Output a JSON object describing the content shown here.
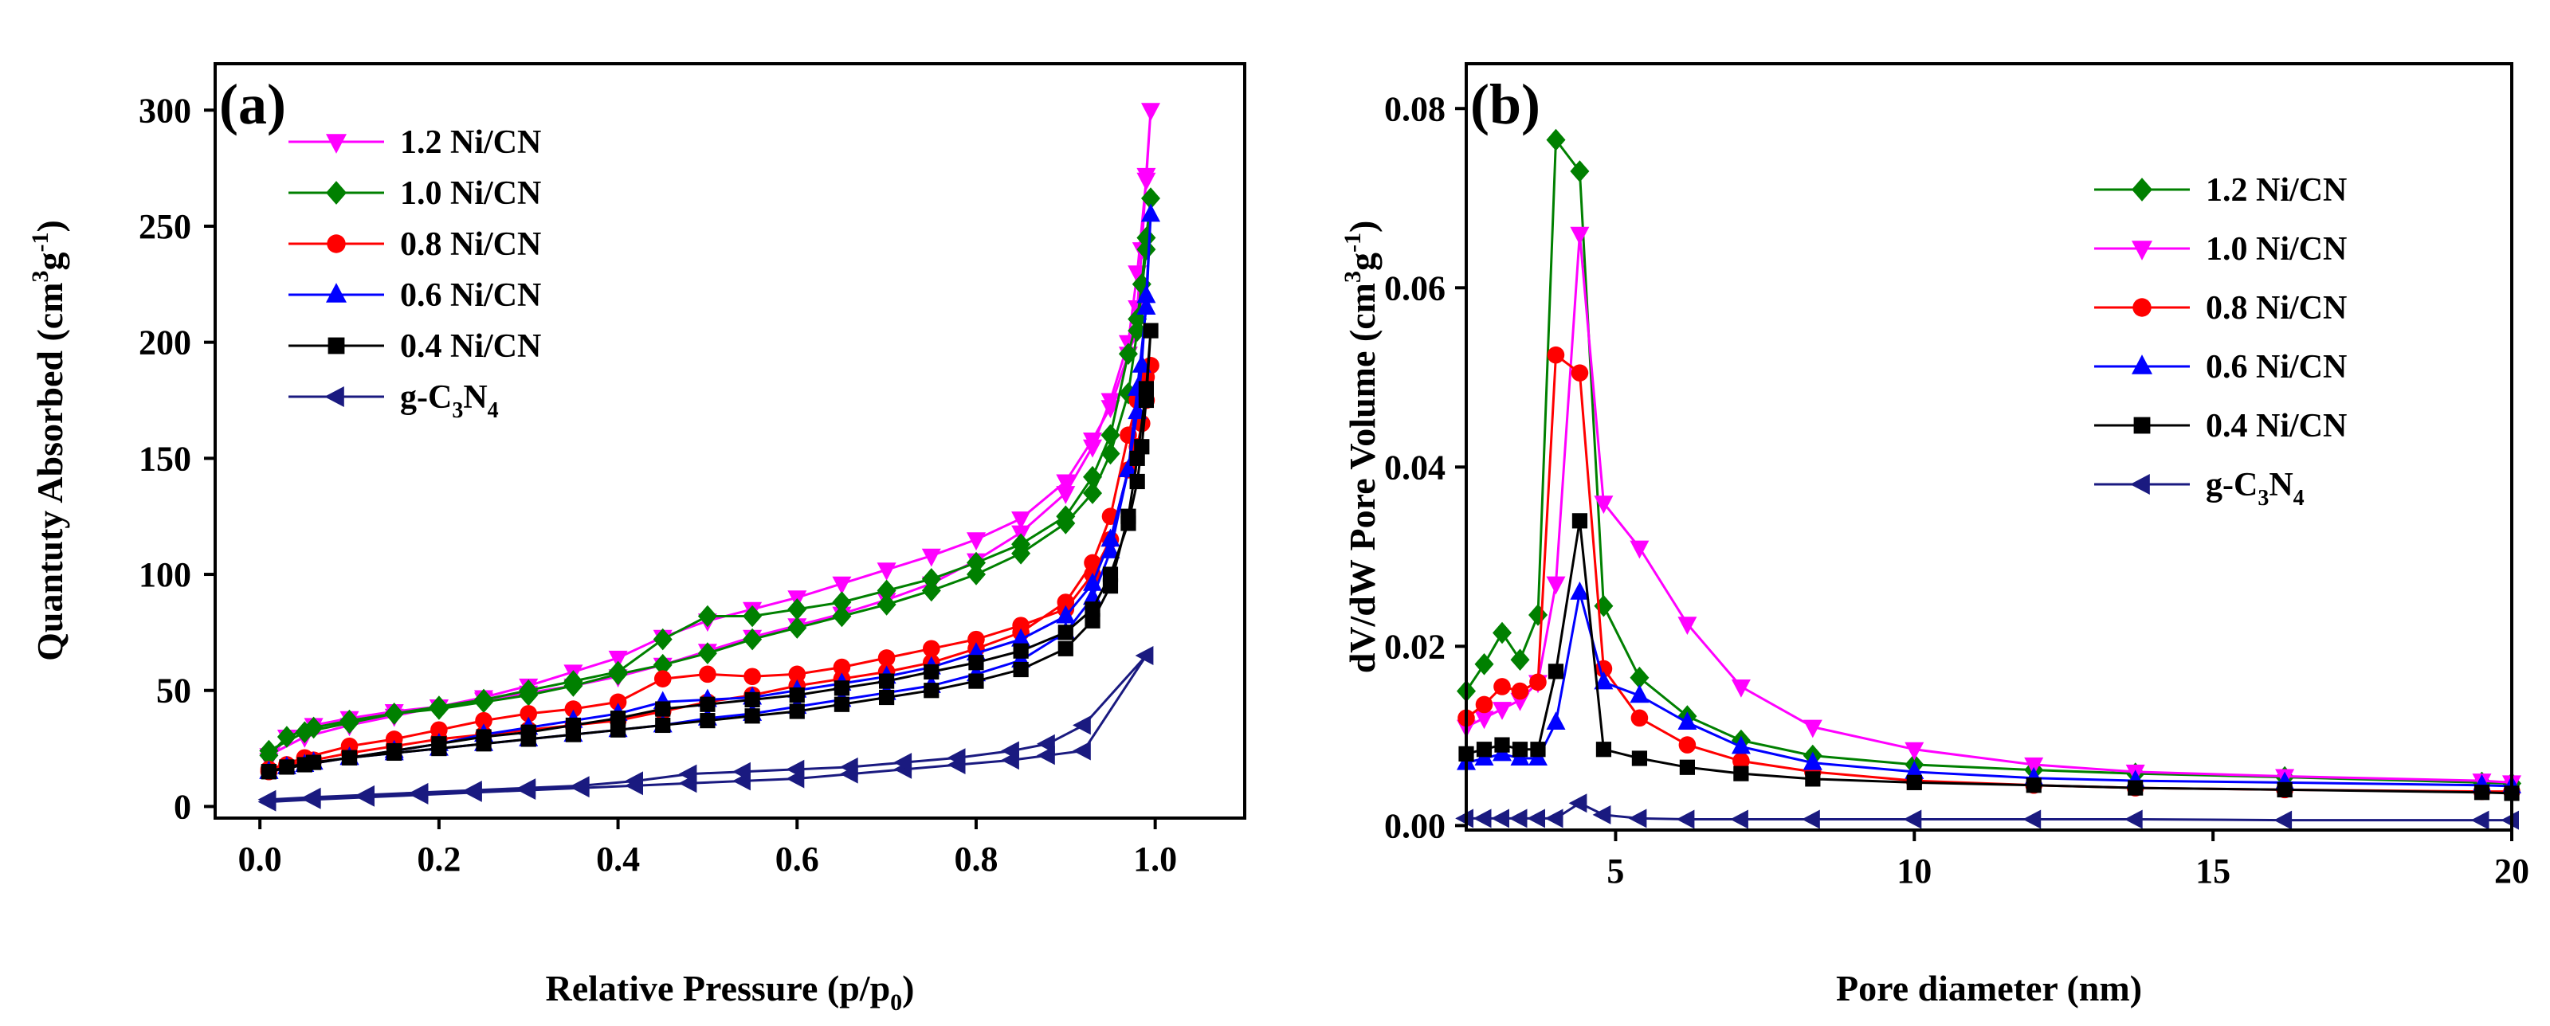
{
  "chart_data": [
    {
      "type": "line",
      "panel_label": "(a)",
      "xlabel_text": "Relative Pressure (p/p",
      "xlabel_sub": "0",
      "xlabel_end": ")",
      "ylabel_text": "Quantuty Absorbed (cm",
      "ylabel_sup1": "3",
      "ylabel_mid": "g",
      "ylabel_sup2": "-1",
      "ylabel_end": ")",
      "xlim": [
        -0.05,
        1.1
      ],
      "ylim": [
        -5,
        320
      ],
      "xticks": [
        0.0,
        0.2,
        0.4,
        0.6,
        0.8,
        1.0
      ],
      "xtick_labels": [
        "0.0",
        "0.2",
        "0.4",
        "0.6",
        "0.8",
        "1.0"
      ],
      "yticks": [
        0,
        50,
        100,
        150,
        200,
        250,
        300
      ],
      "ytick_labels": [
        "0",
        "50",
        "100",
        "150",
        "200",
        "250",
        "300"
      ],
      "legend_position": "top-left",
      "series": [
        {
          "name": "1.2 Ni/CN",
          "color": "#ff00ff",
          "marker": "triangle-down",
          "x": [
            0.01,
            0.03,
            0.06,
            0.1,
            0.15,
            0.2,
            0.25,
            0.3,
            0.35,
            0.4,
            0.45,
            0.5,
            0.55,
            0.6,
            0.65,
            0.7,
            0.75,
            0.8,
            0.85,
            0.9,
            0.93,
            0.95,
            0.97,
            0.98,
            0.99,
            0.995,
            0.99,
            0.985,
            0.98,
            0.97,
            0.95,
            0.93,
            0.9,
            0.85,
            0.8,
            0.75,
            0.7,
            0.65,
            0.6,
            0.55,
            0.5,
            0.45,
            0.4,
            0.35,
            0.3,
            0.25,
            0.2,
            0.15,
            0.1,
            0.05,
            0.01
          ],
          "y": [
            20,
            30,
            35,
            38,
            41,
            43,
            46,
            49,
            52,
            56,
            61,
            67,
            73,
            78,
            83,
            89,
            96,
            106,
            118,
            135,
            155,
            175,
            200,
            230,
            270,
            300,
            272,
            240,
            215,
            195,
            172,
            158,
            140,
            124,
            115,
            108,
            102,
            96,
            90,
            85,
            80,
            73,
            64,
            58,
            52,
            47,
            43,
            39,
            35,
            30,
            22
          ]
        },
        {
          "name": "1.0 Ni/CN",
          "color": "#008000",
          "marker": "diamond",
          "x": [
            0.01,
            0.03,
            0.06,
            0.1,
            0.15,
            0.2,
            0.25,
            0.3,
            0.35,
            0.4,
            0.45,
            0.5,
            0.55,
            0.6,
            0.65,
            0.7,
            0.75,
            0.8,
            0.85,
            0.9,
            0.93,
            0.95,
            0.97,
            0.98,
            0.99,
            0.995,
            0.99,
            0.985,
            0.98,
            0.97,
            0.95,
            0.93,
            0.9,
            0.85,
            0.8,
            0.75,
            0.7,
            0.65,
            0.6,
            0.55,
            0.5,
            0.45,
            0.4,
            0.35,
            0.3,
            0.25,
            0.2,
            0.15,
            0.1,
            0.05,
            0.01
          ],
          "y": [
            22,
            30,
            34,
            37,
            40,
            42,
            45,
            48,
            52,
            57,
            61,
            66,
            72,
            77,
            82,
            87,
            93,
            100,
            109,
            122,
            135,
            152,
            178,
            205,
            240,
            262,
            245,
            225,
            210,
            195,
            160,
            142,
            125,
            113,
            105,
            98,
            93,
            88,
            85,
            82,
            82,
            72,
            58,
            54,
            50,
            46,
            43,
            40,
            36,
            32,
            24
          ]
        },
        {
          "name": "0.8 Ni/CN",
          "color": "#ff0000",
          "marker": "circle",
          "x": [
            0.01,
            0.03,
            0.06,
            0.1,
            0.15,
            0.2,
            0.25,
            0.3,
            0.35,
            0.4,
            0.45,
            0.5,
            0.55,
            0.6,
            0.65,
            0.7,
            0.75,
            0.8,
            0.85,
            0.9,
            0.93,
            0.95,
            0.97,
            0.98,
            0.99,
            0.995,
            0.99,
            0.985,
            0.98,
            0.97,
            0.95,
            0.93,
            0.9,
            0.85,
            0.8,
            0.75,
            0.7,
            0.65,
            0.6,
            0.55,
            0.5,
            0.45,
            0.4,
            0.35,
            0.3,
            0.25,
            0.2,
            0.15,
            0.1,
            0.05,
            0.01
          ],
          "y": [
            15,
            18,
            20,
            23,
            26,
            29,
            31,
            33,
            35,
            37,
            41,
            45,
            48,
            52,
            55,
            58,
            62,
            68,
            75,
            88,
            105,
            125,
            160,
            175,
            185,
            190,
            175,
            165,
            155,
            145,
            115,
            100,
            85,
            78,
            72,
            68,
            64,
            60,
            57,
            56,
            57,
            55,
            45,
            42,
            40,
            37,
            33,
            29,
            26,
            21,
            16
          ]
        },
        {
          "name": "0.6 Ni/CN",
          "color": "#0000ff",
          "marker": "triangle-up",
          "x": [
            0.01,
            0.03,
            0.06,
            0.1,
            0.15,
            0.2,
            0.25,
            0.3,
            0.35,
            0.4,
            0.45,
            0.5,
            0.55,
            0.6,
            0.65,
            0.7,
            0.75,
            0.8,
            0.85,
            0.9,
            0.93,
            0.95,
            0.97,
            0.98,
            0.99,
            0.995,
            0.99,
            0.985,
            0.98,
            0.97,
            0.95,
            0.93,
            0.9,
            0.85,
            0.8,
            0.75,
            0.7,
            0.65,
            0.6,
            0.55,
            0.5,
            0.45,
            0.4,
            0.35,
            0.3,
            0.25,
            0.2,
            0.15,
            0.1,
            0.05,
            0.01
          ],
          "y": [
            15,
            17,
            19,
            21,
            23,
            25,
            27,
            29,
            31,
            33,
            35,
            38,
            40,
            43,
            46,
            49,
            52,
            57,
            63,
            75,
            90,
            110,
            145,
            180,
            215,
            255,
            220,
            190,
            170,
            145,
            115,
            96,
            82,
            72,
            66,
            60,
            56,
            53,
            50,
            47,
            46,
            45,
            40,
            37,
            34,
            31,
            27,
            24,
            21,
            18,
            15
          ]
        },
        {
          "name": "0.4 Ni/CN",
          "color": "#000000",
          "marker": "square",
          "x": [
            0.01,
            0.03,
            0.06,
            0.1,
            0.15,
            0.2,
            0.25,
            0.3,
            0.35,
            0.4,
            0.45,
            0.5,
            0.55,
            0.6,
            0.65,
            0.7,
            0.75,
            0.8,
            0.85,
            0.9,
            0.93,
            0.95,
            0.97,
            0.98,
            0.99,
            0.995,
            0.99,
            0.985,
            0.98,
            0.97,
            0.95,
            0.93,
            0.9,
            0.85,
            0.8,
            0.75,
            0.7,
            0.65,
            0.6,
            0.55,
            0.5,
            0.45,
            0.4,
            0.35,
            0.3,
            0.25,
            0.2,
            0.15,
            0.1,
            0.05,
            0.01
          ],
          "y": [
            15,
            17,
            19,
            21,
            23,
            25,
            27,
            29,
            31,
            33,
            35,
            37,
            39,
            41,
            44,
            47,
            50,
            54,
            59,
            68,
            80,
            95,
            125,
            150,
            180,
            205,
            175,
            155,
            140,
            122,
            100,
            85,
            75,
            67,
            62,
            58,
            54,
            51,
            48,
            46,
            44,
            42,
            38,
            35,
            32,
            30,
            27,
            24,
            21,
            18,
            15
          ]
        },
        {
          "name": "g-C3N4",
          "color": "#1a1a80",
          "marker": "triangle-left",
          "x": [
            0.01,
            0.06,
            0.12,
            0.18,
            0.24,
            0.3,
            0.36,
            0.42,
            0.48,
            0.54,
            0.6,
            0.66,
            0.72,
            0.78,
            0.84,
            0.88,
            0.92,
            0.99,
            0.92,
            0.88,
            0.84,
            0.78,
            0.72,
            0.66,
            0.6,
            0.54,
            0.48,
            0.42,
            0.36,
            0.3,
            0.24,
            0.18,
            0.12,
            0.06,
            0.01
          ],
          "y": [
            2,
            3,
            4,
            5,
            6,
            7,
            8,
            9,
            10,
            11,
            12,
            14,
            16,
            18,
            20,
            22,
            24,
            65,
            35,
            27,
            24,
            21,
            19,
            17,
            16,
            15,
            14,
            11,
            9,
            8,
            7,
            6,
            5,
            4,
            3
          ]
        }
      ]
    },
    {
      "type": "line",
      "panel_label": "(b)",
      "xlabel": "Pore diameter (nm)",
      "ylabel_text": "dV/dW Pore Volume (cm",
      "ylabel_sup1": "3",
      "ylabel_mid": "g",
      "ylabel_sup2": "-1",
      "ylabel_end": ")",
      "xlim": [
        2.5,
        20
      ],
      "ylim": [
        -0.0005,
        0.085
      ],
      "xticks": [
        5,
        10,
        15,
        20
      ],
      "xtick_labels": [
        "5",
        "10",
        "15",
        "20"
      ],
      "yticks": [
        0.0,
        0.02,
        0.04,
        0.06,
        0.08
      ],
      "ytick_labels": [
        "0.00",
        "0.02",
        "0.04",
        "0.06",
        "0.08"
      ],
      "legend_position": "top-right",
      "series": [
        {
          "name": "1.2 Ni/CN",
          "color": "#008000",
          "marker": "diamond",
          "x": [
            2.5,
            2.8,
            3.1,
            3.4,
            3.7,
            4.0,
            4.4,
            4.8,
            5.4,
            6.2,
            7.1,
            8.3,
            10.0,
            12.0,
            13.7,
            16.2,
            19.5,
            20.0
          ],
          "y": [
            0.015,
            0.018,
            0.0215,
            0.0185,
            0.0235,
            0.0765,
            0.073,
            0.0245,
            0.0165,
            0.0122,
            0.0095,
            0.0078,
            0.0068,
            0.0062,
            0.0058,
            0.0054,
            0.0048,
            0.0047
          ]
        },
        {
          "name": "1.0 Ni/CN",
          "color": "#ff00ff",
          "marker": "triangle-down",
          "x": [
            2.5,
            2.8,
            3.1,
            3.4,
            3.7,
            4.0,
            4.4,
            4.8,
            5.4,
            6.2,
            7.1,
            8.3,
            10.0,
            12.0,
            13.7,
            16.2,
            19.5,
            20.0
          ],
          "y": [
            0.011,
            0.012,
            0.013,
            0.014,
            0.016,
            0.027,
            0.066,
            0.036,
            0.031,
            0.0225,
            0.0155,
            0.011,
            0.0085,
            0.0068,
            0.006,
            0.0055,
            0.005,
            0.0048
          ]
        },
        {
          "name": "0.8 Ni/CN",
          "color": "#ff0000",
          "marker": "circle",
          "x": [
            2.5,
            2.8,
            3.1,
            3.4,
            3.7,
            4.0,
            4.4,
            4.8,
            5.4,
            6.2,
            7.1,
            8.3,
            10.0,
            12.0,
            13.7,
            16.2,
            19.5,
            20.0
          ],
          "y": [
            0.012,
            0.0135,
            0.0155,
            0.015,
            0.016,
            0.0525,
            0.0505,
            0.0175,
            0.012,
            0.009,
            0.0072,
            0.006,
            0.005,
            0.0045,
            0.0042,
            0.004,
            0.0038,
            0.0038
          ]
        },
        {
          "name": "0.6 Ni/CN",
          "color": "#0000ff",
          "marker": "triangle-up",
          "x": [
            2.5,
            2.8,
            3.1,
            3.4,
            3.7,
            4.0,
            4.4,
            4.8,
            5.4,
            6.2,
            7.1,
            8.3,
            10.0,
            12.0,
            13.7,
            16.2,
            19.5,
            20.0
          ],
          "y": [
            0.007,
            0.0075,
            0.008,
            0.0075,
            0.0075,
            0.0115,
            0.026,
            0.016,
            0.0145,
            0.0115,
            0.0088,
            0.007,
            0.006,
            0.0053,
            0.005,
            0.0048,
            0.0045,
            0.0044
          ]
        },
        {
          "name": "0.4 Ni/CN",
          "color": "#000000",
          "marker": "square",
          "x": [
            2.5,
            2.8,
            3.1,
            3.4,
            3.7,
            4.0,
            4.4,
            4.8,
            5.4,
            6.2,
            7.1,
            8.3,
            10.0,
            12.0,
            13.7,
            16.2,
            19.5,
            20.0
          ],
          "y": [
            0.008,
            0.0085,
            0.009,
            0.0085,
            0.0085,
            0.0172,
            0.034,
            0.0085,
            0.0075,
            0.0065,
            0.0058,
            0.0052,
            0.0048,
            0.0045,
            0.0042,
            0.004,
            0.0037,
            0.0036
          ]
        },
        {
          "name": "g-C3N4",
          "color": "#1a1a80",
          "marker": "triangle-left",
          "x": [
            2.5,
            2.8,
            3.1,
            3.4,
            3.7,
            4.0,
            4.4,
            4.8,
            5.4,
            6.2,
            7.1,
            8.3,
            10.0,
            12.0,
            13.7,
            16.2,
            19.5,
            20.0
          ],
          "y": [
            0.0008,
            0.0008,
            0.0008,
            0.0008,
            0.0008,
            0.0008,
            0.0025,
            0.0012,
            0.0008,
            0.0007,
            0.0007,
            0.0007,
            0.0007,
            0.0007,
            0.0007,
            0.0006,
            0.0006,
            0.0006
          ]
        }
      ]
    }
  ]
}
